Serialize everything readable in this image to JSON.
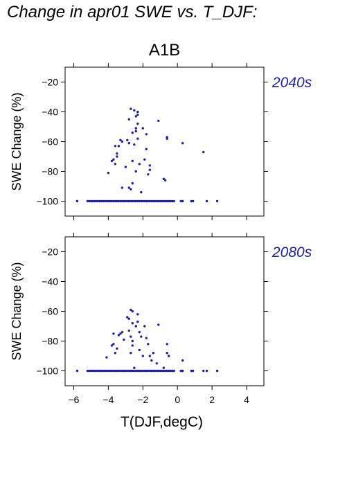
{
  "figure_title": "Change in apr01 SWE vs. T_DJF:",
  "colors": {
    "points": "#1f1fa8",
    "period_label": "#1f1fa8",
    "axes": "#000000"
  },
  "chart_data": [
    {
      "type": "scatter",
      "title": "A1B",
      "period": "2040s",
      "ylabel": "SWE Change (%)",
      "xlabel": "",
      "xlim": [
        -6.5,
        5
      ],
      "ylim": [
        -110,
        -10
      ],
      "xticks": [
        -6,
        -4,
        -2,
        0,
        2,
        4
      ],
      "yticks": [
        -20,
        -40,
        -60,
        -80,
        -100
      ],
      "grid": false,
      "points": [
        [
          -5.8,
          -100
        ],
        [
          -5.2,
          -100
        ],
        [
          -5.1,
          -100
        ],
        [
          -5.0,
          -100
        ],
        [
          -4.9,
          -100
        ],
        [
          -4.8,
          -100
        ],
        [
          -4.7,
          -100
        ],
        [
          -4.6,
          -100
        ],
        [
          -4.5,
          -100
        ],
        [
          -4.4,
          -100
        ],
        [
          -4.3,
          -100
        ],
        [
          -4.2,
          -100
        ],
        [
          -4.1,
          -100
        ],
        [
          -4.0,
          -100
        ],
        [
          -3.9,
          -100
        ],
        [
          -3.8,
          -100
        ],
        [
          -3.7,
          -100
        ],
        [
          -3.6,
          -100
        ],
        [
          -3.5,
          -100
        ],
        [
          -3.4,
          -100
        ],
        [
          -3.3,
          -100
        ],
        [
          -3.2,
          -100
        ],
        [
          -3.1,
          -100
        ],
        [
          -3.0,
          -100
        ],
        [
          -2.9,
          -100
        ],
        [
          -2.8,
          -100
        ],
        [
          -2.7,
          -100
        ],
        [
          -2.6,
          -100
        ],
        [
          -2.5,
          -100
        ],
        [
          -2.4,
          -100
        ],
        [
          -2.3,
          -100
        ],
        [
          -2.2,
          -100
        ],
        [
          -2.1,
          -100
        ],
        [
          -2.0,
          -100
        ],
        [
          -1.9,
          -100
        ],
        [
          -1.8,
          -100
        ],
        [
          -1.7,
          -100
        ],
        [
          -1.6,
          -100
        ],
        [
          -1.5,
          -100
        ],
        [
          -1.4,
          -100
        ],
        [
          -1.3,
          -100
        ],
        [
          -1.2,
          -100
        ],
        [
          -1.1,
          -100
        ],
        [
          -1.0,
          -100
        ],
        [
          -0.9,
          -100
        ],
        [
          -0.8,
          -100
        ],
        [
          -0.7,
          -100
        ],
        [
          -0.6,
          -100
        ],
        [
          -0.5,
          -100
        ],
        [
          -0.4,
          -100
        ],
        [
          -0.3,
          -100
        ],
        [
          -0.2,
          -100
        ],
        [
          0.2,
          -100
        ],
        [
          0.3,
          -100
        ],
        [
          0.8,
          -100
        ],
        [
          0.9,
          -100
        ],
        [
          1.7,
          -100
        ],
        [
          2.3,
          -100
        ],
        [
          -4.0,
          -81
        ],
        [
          -3.8,
          -73
        ],
        [
          -3.7,
          -72
        ],
        [
          -3.6,
          -75
        ],
        [
          -3.6,
          -63
        ],
        [
          -3.5,
          -70
        ],
        [
          -3.5,
          -68
        ],
        [
          -3.4,
          -63
        ],
        [
          -3.3,
          -59
        ],
        [
          -3.2,
          -60
        ],
        [
          -3.2,
          -91
        ],
        [
          -3.0,
          -77
        ],
        [
          -2.9,
          -59
        ],
        [
          -2.8,
          -45
        ],
        [
          -2.8,
          -61
        ],
        [
          -2.8,
          -91
        ],
        [
          -2.7,
          -38
        ],
        [
          -2.7,
          -92
        ],
        [
          -2.6,
          -73
        ],
        [
          -2.6,
          -54
        ],
        [
          -2.6,
          -88
        ],
        [
          -2.5,
          -39
        ],
        [
          -2.5,
          -62
        ],
        [
          -2.4,
          -43
        ],
        [
          -2.4,
          -51
        ],
        [
          -2.4,
          -53
        ],
        [
          -2.4,
          -80
        ],
        [
          -2.3,
          -42
        ],
        [
          -2.3,
          -40
        ],
        [
          -2.3,
          -48
        ],
        [
          -2.3,
          -58
        ],
        [
          -2.2,
          -75
        ],
        [
          -2.1,
          -94
        ],
        [
          -2.0,
          -51
        ],
        [
          -1.9,
          -72
        ],
        [
          -1.8,
          -55
        ],
        [
          -1.8,
          -65
        ],
        [
          -1.7,
          -82
        ],
        [
          -1.6,
          -79
        ],
        [
          -1.6,
          -76
        ],
        [
          -1.1,
          -46
        ],
        [
          -0.8,
          -85
        ],
        [
          -0.7,
          -86
        ],
        [
          -0.6,
          -57
        ],
        [
          -0.6,
          -58
        ],
        [
          0.3,
          -61
        ],
        [
          1.5,
          -67
        ]
      ]
    },
    {
      "type": "scatter",
      "title": "",
      "period": "2080s",
      "ylabel": "SWE Change (%)",
      "xlabel": "T(DJF,degC)",
      "xlim": [
        -6.5,
        5
      ],
      "ylim": [
        -110,
        -10
      ],
      "xticks": [
        -6,
        -4,
        -2,
        0,
        2,
        4
      ],
      "yticks": [
        -20,
        -40,
        -60,
        -80,
        -100
      ],
      "grid": false,
      "points": [
        [
          -5.8,
          -100
        ],
        [
          -5.2,
          -100
        ],
        [
          -5.1,
          -100
        ],
        [
          -5.0,
          -100
        ],
        [
          -4.9,
          -100
        ],
        [
          -4.8,
          -100
        ],
        [
          -4.7,
          -100
        ],
        [
          -4.6,
          -100
        ],
        [
          -4.5,
          -100
        ],
        [
          -4.4,
          -100
        ],
        [
          -4.3,
          -100
        ],
        [
          -4.2,
          -100
        ],
        [
          -4.1,
          -100
        ],
        [
          -4.0,
          -100
        ],
        [
          -3.9,
          -100
        ],
        [
          -3.8,
          -100
        ],
        [
          -3.7,
          -100
        ],
        [
          -3.6,
          -100
        ],
        [
          -3.5,
          -100
        ],
        [
          -3.4,
          -100
        ],
        [
          -3.3,
          -100
        ],
        [
          -3.2,
          -100
        ],
        [
          -3.1,
          -100
        ],
        [
          -3.0,
          -100
        ],
        [
          -2.9,
          -100
        ],
        [
          -2.8,
          -100
        ],
        [
          -2.7,
          -100
        ],
        [
          -2.6,
          -100
        ],
        [
          -2.5,
          -100
        ],
        [
          -2.4,
          -100
        ],
        [
          -2.3,
          -100
        ],
        [
          -2.2,
          -100
        ],
        [
          -2.1,
          -100
        ],
        [
          -2.0,
          -100
        ],
        [
          -1.9,
          -100
        ],
        [
          -1.8,
          -100
        ],
        [
          -1.7,
          -100
        ],
        [
          -1.6,
          -100
        ],
        [
          -1.5,
          -100
        ],
        [
          -1.4,
          -100
        ],
        [
          -1.3,
          -100
        ],
        [
          -1.2,
          -100
        ],
        [
          -1.1,
          -100
        ],
        [
          -1.0,
          -100
        ],
        [
          -0.9,
          -100
        ],
        [
          -0.8,
          -100
        ],
        [
          -0.7,
          -100
        ],
        [
          -0.6,
          -100
        ],
        [
          -0.5,
          -100
        ],
        [
          -0.4,
          -100
        ],
        [
          -0.3,
          -100
        ],
        [
          -0.2,
          -100
        ],
        [
          0.2,
          -100
        ],
        [
          0.3,
          -100
        ],
        [
          0.8,
          -100
        ],
        [
          0.9,
          -100
        ],
        [
          1.5,
          -100
        ],
        [
          1.7,
          -100
        ],
        [
          2.3,
          -100
        ],
        [
          -4.1,
          -91
        ],
        [
          -3.8,
          -83
        ],
        [
          -3.7,
          -75
        ],
        [
          -3.7,
          -82
        ],
        [
          -3.6,
          -88
        ],
        [
          -3.5,
          -85
        ],
        [
          -3.4,
          -76
        ],
        [
          -3.3,
          -75
        ],
        [
          -3.2,
          -74
        ],
        [
          -3.1,
          -79
        ],
        [
          -2.9,
          -64
        ],
        [
          -2.8,
          -65
        ],
        [
          -2.8,
          -73
        ],
        [
          -2.7,
          -59
        ],
        [
          -2.7,
          -77
        ],
        [
          -2.7,
          -88
        ],
        [
          -2.6,
          -60
        ],
        [
          -2.6,
          -68
        ],
        [
          -2.6,
          -80
        ],
        [
          -2.6,
          -83
        ],
        [
          -2.5,
          -98
        ],
        [
          -2.4,
          -70
        ],
        [
          -2.3,
          -62
        ],
        [
          -2.3,
          -67
        ],
        [
          -2.2,
          -74
        ],
        [
          -2.2,
          -86
        ],
        [
          -2.1,
          -77
        ],
        [
          -2.0,
          -90
        ],
        [
          -1.9,
          -70
        ],
        [
          -1.8,
          -78
        ],
        [
          -1.7,
          -82
        ],
        [
          -1.6,
          -90
        ],
        [
          -1.5,
          -93
        ],
        [
          -1.4,
          -88
        ],
        [
          -1.2,
          -95
        ],
        [
          -1.1,
          -69
        ],
        [
          -0.8,
          -98
        ],
        [
          -0.6,
          -82
        ],
        [
          -0.6,
          -88
        ],
        [
          -0.5,
          -90
        ],
        [
          0.3,
          -93
        ]
      ]
    }
  ]
}
